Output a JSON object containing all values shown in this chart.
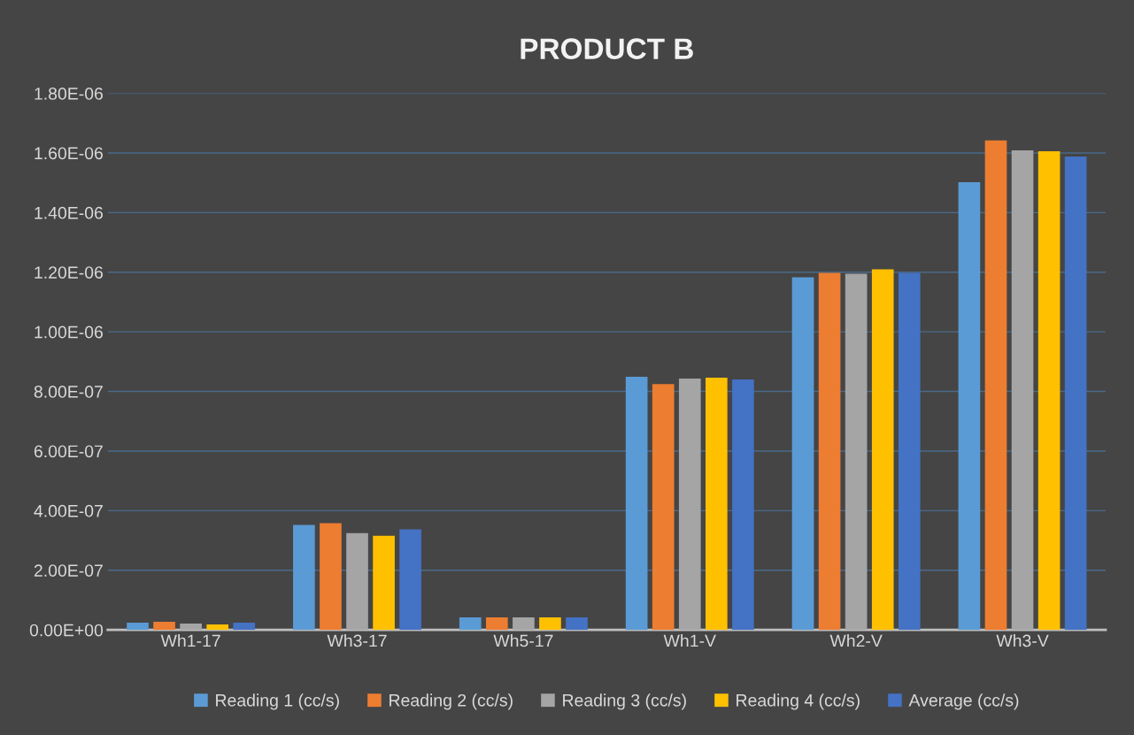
{
  "chart_data": {
    "type": "bar",
    "title": "PRODUCT B",
    "categories": [
      "Wh1-17",
      "Wh3-17",
      "Wh5-17",
      "Wh1-V",
      "Wh2-V",
      "Wh3-V"
    ],
    "series": [
      {
        "name": "Reading 1 (cc/s)",
        "color": "#5b9bd5",
        "values": [
          2.4e-08,
          3.52e-07,
          4.2e-08,
          8.49e-07,
          1.183e-06,
          1.502e-06
        ]
      },
      {
        "name": "Reading 2 (cc/s)",
        "color": "#ed7d31",
        "values": [
          2.7e-08,
          3.58e-07,
          4.2e-08,
          8.25e-07,
          1.198e-06,
          1.642e-06
        ]
      },
      {
        "name": "Reading 3 (cc/s)",
        "color": "#a5a5a5",
        "values": [
          2.1e-08,
          3.25e-07,
          4.2e-08,
          8.43e-07,
          1.195e-06,
          1.609e-06
        ]
      },
      {
        "name": "Reading 4 (cc/s)",
        "color": "#ffc000",
        "values": [
          1.8e-08,
          3.16e-07,
          4.2e-08,
          8.46e-07,
          1.21e-06,
          1.606e-06
        ]
      },
      {
        "name": "Average (cc/s)",
        "color": "#4472c4",
        "values": [
          2.4e-08,
          3.37e-07,
          4.2e-08,
          8.4e-07,
          1.198e-06,
          1.588e-06
        ]
      }
    ],
    "ylim": [
      0,
      1.8e-06
    ],
    "yticks": [
      {
        "value": 0,
        "label": "0.00E+00"
      },
      {
        "value": 2e-07,
        "label": "2.00E-07"
      },
      {
        "value": 4e-07,
        "label": "4.00E-07"
      },
      {
        "value": 6e-07,
        "label": "6.00E-07"
      },
      {
        "value": 8e-07,
        "label": "8.00E-07"
      },
      {
        "value": 1e-06,
        "label": "1.00E-06"
      },
      {
        "value": 1.2e-06,
        "label": "1.20E-06"
      },
      {
        "value": 1.4e-06,
        "label": "1.40E-06"
      },
      {
        "value": 1.6e-06,
        "label": "1.60E-06"
      },
      {
        "value": 1.8e-06,
        "label": "1.80E-06"
      }
    ],
    "grid": "y",
    "legend": "bottom"
  }
}
